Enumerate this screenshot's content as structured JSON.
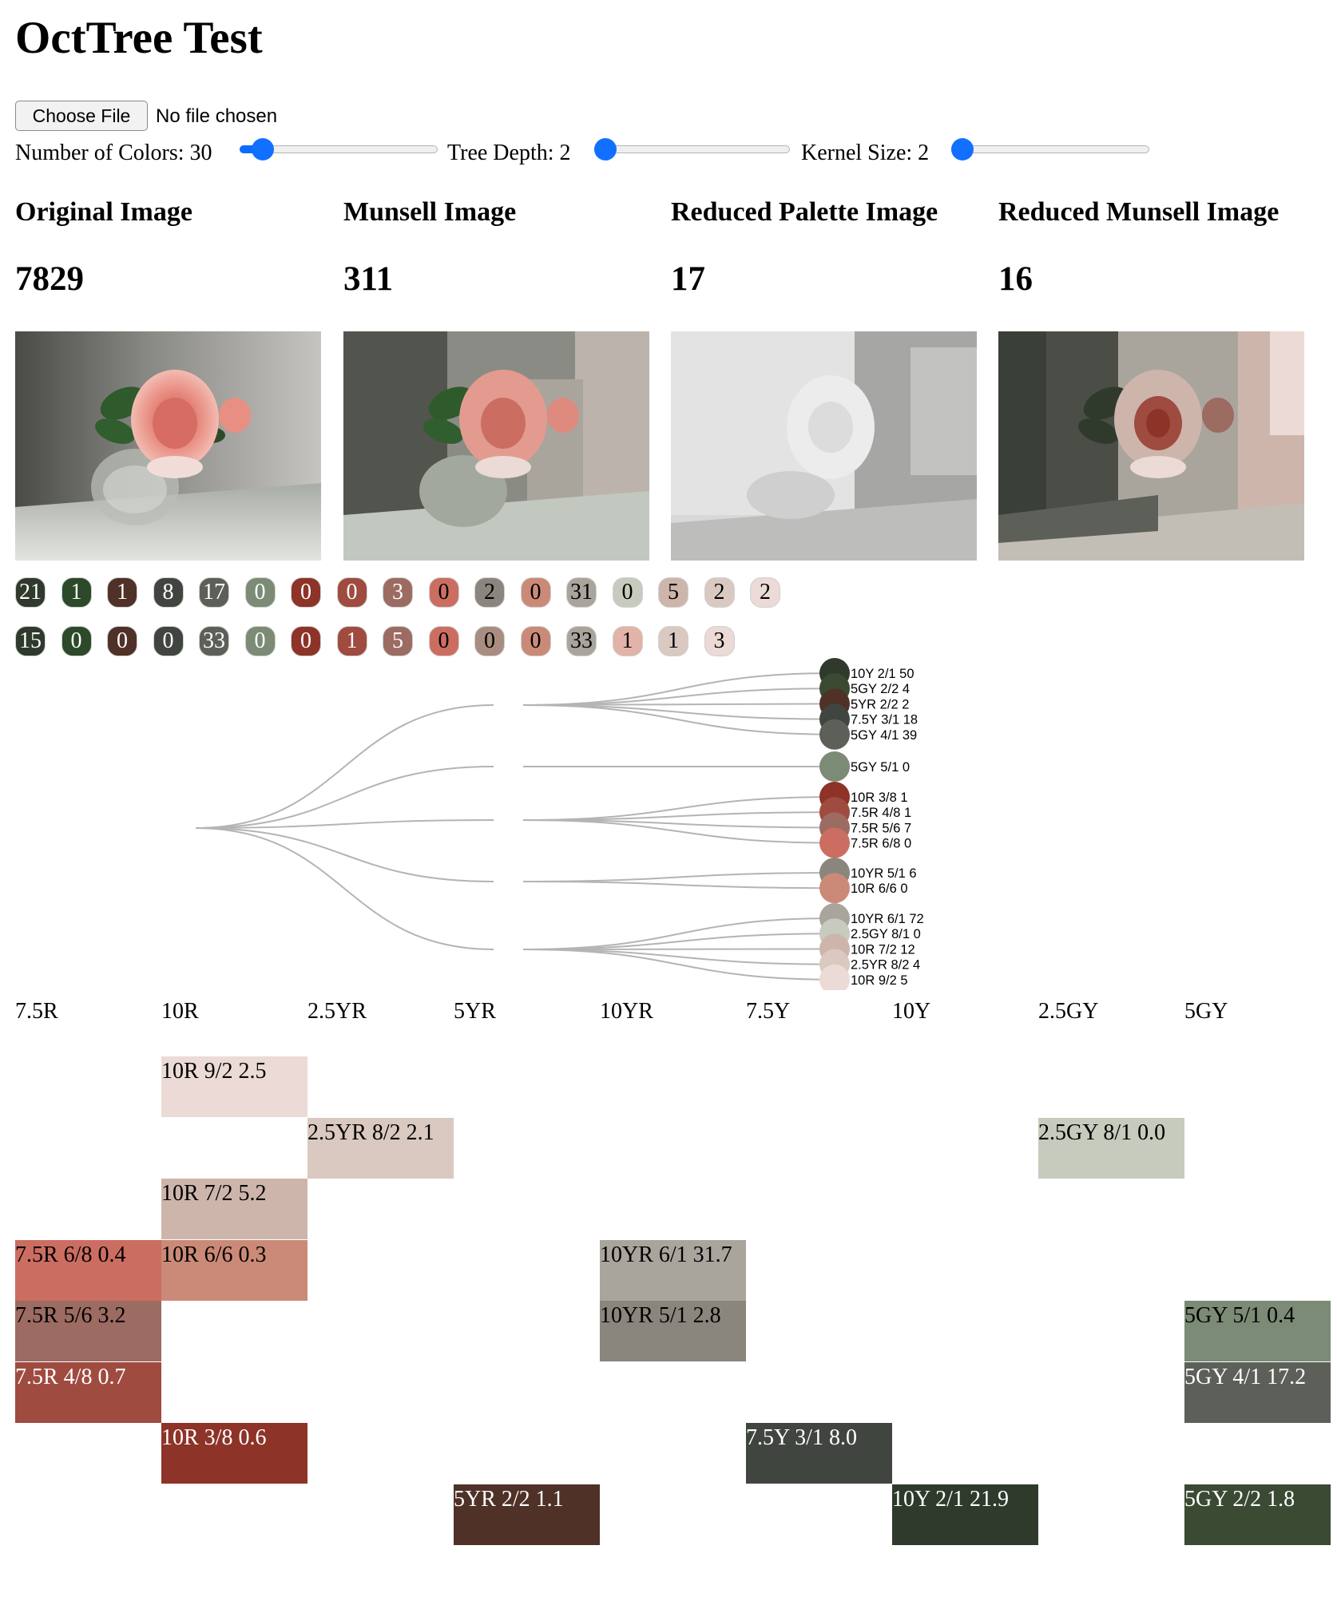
{
  "page": {
    "title": "OctTree Test"
  },
  "file_input": {
    "button_label": "Choose File",
    "status": "No file chosen"
  },
  "controls": [
    {
      "label": "Number of Colors: 30",
      "level": 0.07
    },
    {
      "label": "Tree Depth: 2",
      "level": 0.0
    },
    {
      "label": "Kernel Size: 2",
      "level": 0.0
    }
  ],
  "columns": [
    {
      "title": "Original Image",
      "count": "7829"
    },
    {
      "title": "Munsell Image",
      "count": "311"
    },
    {
      "title": "Reduced Palette Image",
      "count": "17"
    },
    {
      "title": "Reduced Munsell Image",
      "count": "16"
    }
  ],
  "palette_rows": [
    [
      {
        "value": "21",
        "color": "#2f3a2c",
        "text": "#ffffff"
      },
      {
        "value": "1",
        "color": "#2c4a2a",
        "text": "#ffffff"
      },
      {
        "value": "1",
        "color": "#4f3128",
        "text": "#ffffff"
      },
      {
        "value": "8",
        "color": "#414540",
        "text": "#ffffff"
      },
      {
        "value": "17",
        "color": "#5d6058",
        "text": "#ffffff"
      },
      {
        "value": "0",
        "color": "#7b8b75",
        "text": "#ffffff"
      },
      {
        "value": "0",
        "color": "#8d3327",
        "text": "#ffffff"
      },
      {
        "value": "0",
        "color": "#a04b40",
        "text": "#ffffff"
      },
      {
        "value": "3",
        "color": "#9c6b62",
        "text": "#ffffff"
      },
      {
        "value": "0",
        "color": "#cb6e61",
        "text": "#000000"
      },
      {
        "value": "2",
        "color": "#8a857d",
        "text": "#000000"
      },
      {
        "value": "0",
        "color": "#cb8a78",
        "text": "#000000"
      },
      {
        "value": "31",
        "color": "#a9a59d",
        "text": "#000000"
      },
      {
        "value": "0",
        "color": "#c6cbbd",
        "text": "#000000"
      },
      {
        "value": "5",
        "color": "#cdb5ab",
        "text": "#000000"
      },
      {
        "value": "2",
        "color": "#dac9c0",
        "text": "#000000"
      },
      {
        "value": "2",
        "color": "#ebdad5",
        "text": "#000000"
      }
    ],
    [
      {
        "value": "15",
        "color": "#2f3a2c",
        "text": "#ffffff"
      },
      {
        "value": "0",
        "color": "#2c4a2a",
        "text": "#ffffff"
      },
      {
        "value": "0",
        "color": "#4f3128",
        "text": "#ffffff"
      },
      {
        "value": "0",
        "color": "#414540",
        "text": "#ffffff"
      },
      {
        "value": "33",
        "color": "#5d6058",
        "text": "#ffffff"
      },
      {
        "value": "0",
        "color": "#7b8b75",
        "text": "#ffffff"
      },
      {
        "value": "0",
        "color": "#8d3327",
        "text": "#ffffff"
      },
      {
        "value": "1",
        "color": "#a04b40",
        "text": "#ffffff"
      },
      {
        "value": "5",
        "color": "#9c6b62",
        "text": "#ffffff"
      },
      {
        "value": "0",
        "color": "#cb6e61",
        "text": "#000000"
      },
      {
        "value": "0",
        "color": "#a88d80",
        "text": "#000000"
      },
      {
        "value": "0",
        "color": "#cb8a78",
        "text": "#000000"
      },
      {
        "value": "33",
        "color": "#a9a59d",
        "text": "#000000"
      },
      {
        "value": "1",
        "color": "#e3b2a8",
        "text": "#000000"
      },
      {
        "value": "1",
        "color": "#dac9c0",
        "text": "#000000"
      },
      {
        "value": "3",
        "color": "#ebdad5",
        "text": "#000000"
      }
    ]
  ],
  "tree": {
    "groups": [
      {
        "leaves": [
          {
            "label": "10Y 2/1 50",
            "color": "#2f3a2c"
          },
          {
            "label": "5GY 2/2 4",
            "color": "#3b4a33"
          },
          {
            "label": "5YR 2/2 2",
            "color": "#4f3128"
          },
          {
            "label": "7.5Y 3/1 18",
            "color": "#414540"
          },
          {
            "label": "5GY 4/1 39",
            "color": "#5d6058"
          }
        ]
      },
      {
        "leaves": [
          {
            "label": "5GY 5/1 0",
            "color": "#7b8b75"
          }
        ]
      },
      {
        "leaves": [
          {
            "label": "10R 3/8 1",
            "color": "#8d3327"
          },
          {
            "label": "7.5R 4/8 1",
            "color": "#a04b40"
          },
          {
            "label": "7.5R 5/6 7",
            "color": "#9c6b62"
          },
          {
            "label": "7.5R 6/8 0",
            "color": "#cb6e61"
          }
        ]
      },
      {
        "leaves": [
          {
            "label": "10YR 5/1 6",
            "color": "#8a857d"
          },
          {
            "label": "10R 6/6 0",
            "color": "#cb8a78"
          }
        ]
      },
      {
        "leaves": [
          {
            "label": "10YR 6/1 72",
            "color": "#a9a59d"
          },
          {
            "label": "2.5GY 8/1 0",
            "color": "#c6cbbd"
          },
          {
            "label": "10R 7/2 12",
            "color": "#cdb5ab"
          },
          {
            "label": "2.5YR 8/2 4",
            "color": "#dac9c0"
          },
          {
            "label": "10R 9/2 5",
            "color": "#ebdad5"
          }
        ]
      }
    ]
  },
  "hue_axis": [
    "7.5R",
    "10R",
    "2.5YR",
    "5YR",
    "10YR",
    "7.5Y",
    "10Y",
    "2.5GY",
    "5GY"
  ],
  "munsell_grid": [
    {
      "label": "10R 9/2 2.5",
      "col": 1,
      "row": 0,
      "color": "#ebdad5",
      "text": "#000000"
    },
    {
      "label": "2.5YR 8/2 2.1",
      "col": 2,
      "row": 1,
      "color": "#dac9c0",
      "text": "#000000"
    },
    {
      "label": "2.5GY 8/1 0.0",
      "col": 7,
      "row": 1,
      "color": "#c6cbbd",
      "text": "#000000"
    },
    {
      "label": "10R 7/2 5.2",
      "col": 1,
      "row": 2,
      "color": "#cdb5ab",
      "text": "#000000"
    },
    {
      "label": "7.5R 6/8 0.4",
      "col": 0,
      "row": 3,
      "color": "#cb6e61",
      "text": "#000000"
    },
    {
      "label": "10R 6/6 0.3",
      "col": 1,
      "row": 3,
      "color": "#cb8a78",
      "text": "#000000"
    },
    {
      "label": "10YR 6/1 31.7",
      "col": 4,
      "row": 3,
      "color": "#a9a59d",
      "text": "#000000"
    },
    {
      "label": "7.5R 5/6 3.2",
      "col": 0,
      "row": 4,
      "color": "#9c6b62",
      "text": "#000000"
    },
    {
      "label": "10YR 5/1 2.8",
      "col": 4,
      "row": 4,
      "color": "#8a857d",
      "text": "#000000"
    },
    {
      "label": "5GY 5/1 0.4",
      "col": 8,
      "row": 4,
      "color": "#7b8b75",
      "text": "#000000"
    },
    {
      "label": "7.5R 4/8 0.7",
      "col": 0,
      "row": 5,
      "color": "#a04b40",
      "text": "#ffffff"
    },
    {
      "label": "5GY 4/1 17.2",
      "col": 8,
      "row": 5,
      "color": "#5d6058",
      "text": "#ffffff"
    },
    {
      "label": "10R 3/8 0.6",
      "col": 1,
      "row": 6,
      "color": "#8d3327",
      "text": "#ffffff"
    },
    {
      "label": "7.5Y 3/1 8.0",
      "col": 5,
      "row": 6,
      "color": "#414540",
      "text": "#ffffff"
    },
    {
      "label": "5YR 2/2 1.1",
      "col": 3,
      "row": 7,
      "color": "#4f3128",
      "text": "#ffffff"
    },
    {
      "label": "10Y 2/1 21.9",
      "col": 6,
      "row": 7,
      "color": "#2f3a2c",
      "text": "#ffffff"
    },
    {
      "label": "5GY 2/2 1.8",
      "col": 8,
      "row": 7,
      "color": "#3b4a33",
      "text": "#ffffff"
    }
  ]
}
